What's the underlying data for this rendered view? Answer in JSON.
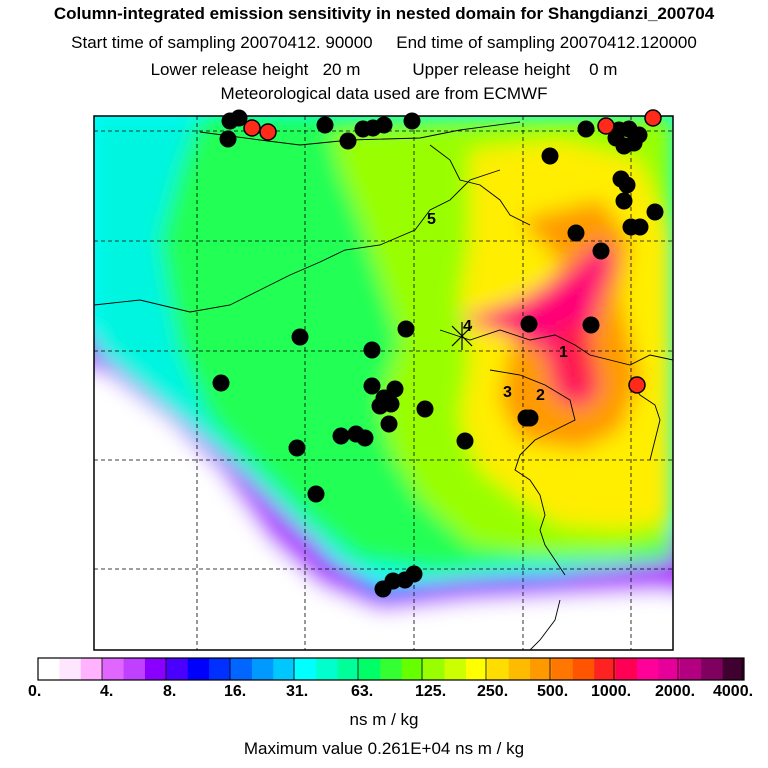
{
  "header": {
    "title": "Column-integrated emission sensitivity in nested domain for Shangdianzi_200704",
    "line2_start_label": "Start time of sampling",
    "line2_start_value": "20070412. 90000",
    "line2_end_label": "End time of sampling",
    "line2_end_value": "20070412.120000",
    "line3_lower_label": "Lower release height",
    "line3_lower_value": "20 m",
    "line3_upper_label": "Upper release height",
    "line3_upper_value": "0 m",
    "line4": "Meteorological data used are from ECMWF"
  },
  "map": {
    "station_labels": [
      "1",
      "2",
      "3",
      "4",
      "5"
    ],
    "colors": {
      "black_dot": "#000000",
      "red_dot": "#ff2a1a"
    }
  },
  "colorbar": {
    "tick_labels": [
      "0.",
      "4.",
      "8.",
      "16.",
      "31.",
      "63.",
      "125.",
      "250.",
      "500.",
      "1000.",
      "2000.",
      "4000."
    ],
    "colors": [
      "#ffffff",
      "#ffe6ff",
      "#ffb3ff",
      "#e066ff",
      "#c040ff",
      "#8a00ff",
      "#4a00ff",
      "#0000ff",
      "#0030ff",
      "#0066ff",
      "#0099ff",
      "#00c8ff",
      "#00ffff",
      "#00ffcc",
      "#00ff99",
      "#00ff66",
      "#33ff33",
      "#66ff00",
      "#99ff00",
      "#ccff00",
      "#ffff00",
      "#ffdd00",
      "#ffbb00",
      "#ff9900",
      "#ff7700",
      "#ff5500",
      "#ff2222",
      "#ff0055",
      "#ff0099",
      "#e60099",
      "#b30080",
      "#800060",
      "#400030"
    ],
    "units": "ns m / kg"
  },
  "footer": {
    "max_label": "Maximum value",
    "max_value": "0.261E+04",
    "max_units": "ns m / kg"
  }
}
